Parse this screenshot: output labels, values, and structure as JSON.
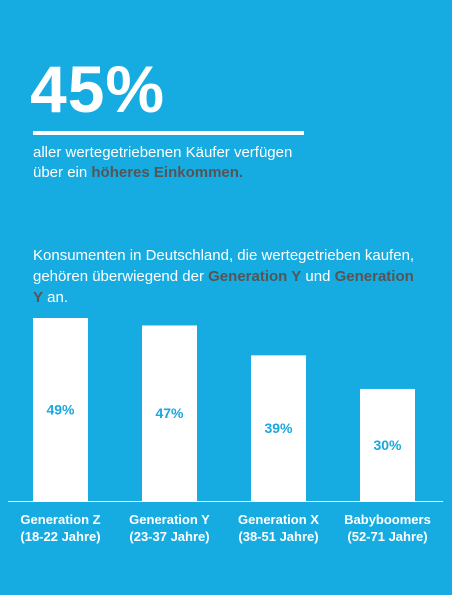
{
  "headline": {
    "value": "45%",
    "text_part1": "aller wertegetriebenen Käufer verfügen",
    "text_part2": "über ein ",
    "highlight": "höheres Einkommen.",
    "highlight_color": "#555555"
  },
  "intro": {
    "text_part1": "Konsumenten in Deutschland, die wertegetrieben kaufen, gehören überwiegend der ",
    "highlight1": "Generation Y",
    "text_part2": " und ",
    "highlight2": "Generation Y",
    "text_part3": " an."
  },
  "colors": {
    "background": "#17ace1",
    "bar": "#ffffff",
    "bar_label": "#1aa7dc",
    "text": "#ffffff"
  },
  "chart_data": {
    "type": "bar",
    "title": "",
    "xlabel": "",
    "ylabel": "",
    "ylim": [
      0,
      49
    ],
    "grid": false,
    "unit": "%",
    "categories": [
      [
        "Generation Z",
        "(18-22 Jahre)"
      ],
      [
        "Generation Y",
        "(23-37 Jahre)"
      ],
      [
        "Generation X",
        "(38-51 Jahre)"
      ],
      [
        "Babyboomers",
        "(52-71 Jahre)"
      ]
    ],
    "values": [
      49,
      47,
      39,
      30
    ],
    "value_labels": [
      "49%",
      "47%",
      "39%",
      "30%"
    ]
  }
}
